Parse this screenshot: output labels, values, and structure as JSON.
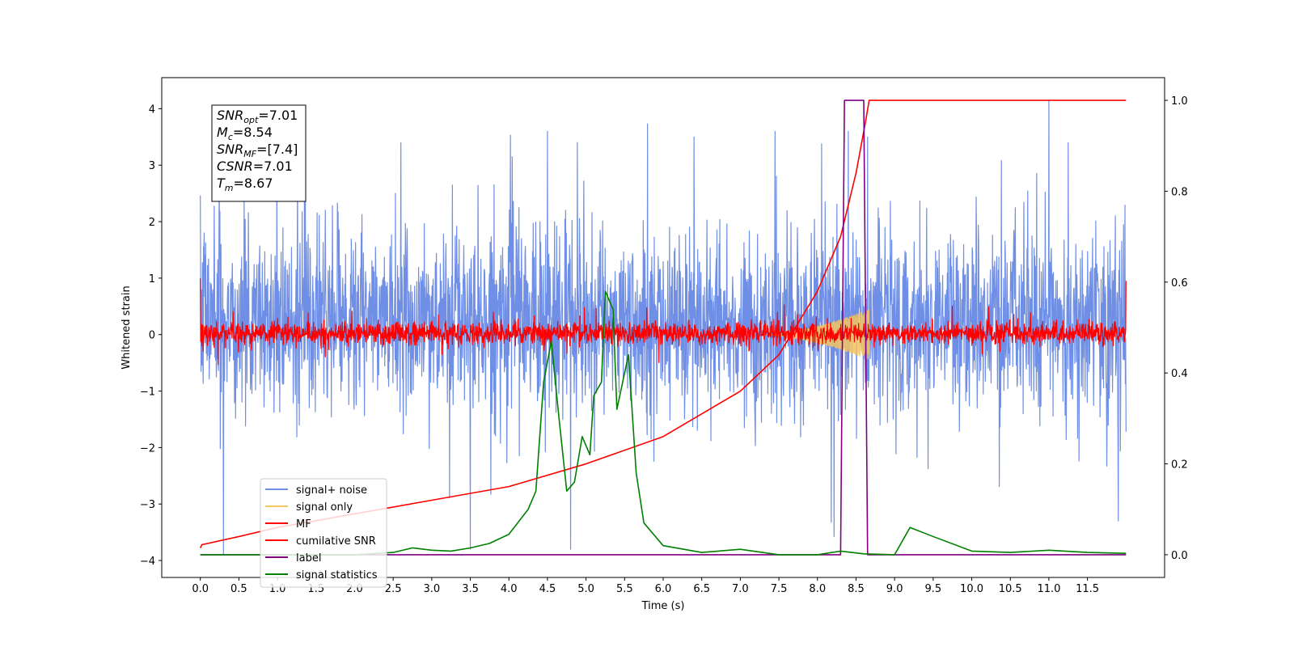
{
  "chart_data": {
    "type": "line",
    "title": "",
    "xlabel": "Time (s)",
    "ylabel": "Whitened strain",
    "y2label": "",
    "xlim": [
      -0.5,
      12.5
    ],
    "ylim": [
      -4.3,
      4.55
    ],
    "y2lim": [
      -0.05,
      1.05
    ],
    "xticks": [
      0.0,
      0.5,
      1.0,
      1.5,
      2.0,
      2.5,
      3.0,
      3.5,
      4.0,
      4.5,
      5.0,
      5.5,
      6.0,
      6.5,
      7.0,
      7.5,
      8.0,
      8.5,
      9.0,
      9.5,
      10.0,
      10.5,
      11.0,
      11.5
    ],
    "xtick_labels": [
      "0.0",
      "0.5",
      "1.0",
      "1.5",
      "2.0",
      "2.5",
      "3.0",
      "3.5",
      "4.0",
      "4.5",
      "5.0",
      "5.5",
      "6.0",
      "6.5",
      "7.0",
      "7.5",
      "8.0",
      "8.5",
      "9.0",
      "9.5",
      "10.0",
      "10.5",
      "11.0",
      "11.5"
    ],
    "yticks": [
      -4,
      -3,
      -2,
      -1,
      0,
      1,
      2,
      3,
      4
    ],
    "ytick_labels": [
      "−4",
      "−3",
      "−2",
      "−1",
      "0",
      "1",
      "2",
      "3",
      "4"
    ],
    "y2ticks": [
      0.0,
      0.2,
      0.4,
      0.6,
      0.8,
      1.0
    ],
    "y2tick_labels": [
      "0.0",
      "0.2",
      "0.4",
      "0.6",
      "0.8",
      "1.0"
    ],
    "legend_position": "lower-left",
    "grid": false,
    "annotation": {
      "lines": [
        {
          "main": "SNR",
          "sub": "opt",
          "rest": "=7.01"
        },
        {
          "main": "M",
          "sub": "c",
          "rest": "=8.54"
        },
        {
          "main": "SNR",
          "sub": "MF",
          "rest": "=[7.4]"
        },
        {
          "main": "CSNR",
          "sub": "",
          "rest": "=7.01"
        },
        {
          "main": "T",
          "sub": "m",
          "rest": "=8.67"
        }
      ]
    },
    "series": [
      {
        "name": "signal+ noise",
        "axis": "left",
        "color": "#6f8fe6",
        "kind": "noise_band",
        "x_range": [
          0.0,
          12.0
        ],
        "typical_range": [
          -1.2,
          1.7
        ],
        "extremes": [
          [
            0.05,
            1.8
          ],
          [
            0.3,
            -3.9
          ],
          [
            1.35,
            3.45
          ],
          [
            2.6,
            3.4
          ],
          [
            3.5,
            -3.8
          ],
          [
            4.5,
            3.6
          ],
          [
            4.8,
            -3.8
          ],
          [
            6.4,
            3.5
          ],
          [
            7.45,
            3.6
          ],
          [
            8.4,
            3.6
          ],
          [
            8.65,
            3.5
          ],
          [
            11.0,
            4.15
          ],
          [
            11.25,
            3.4
          ],
          [
            11.9,
            -3.3
          ]
        ]
      },
      {
        "name": "signal only",
        "axis": "left",
        "color": "#f5c45f",
        "kind": "chirp",
        "x_range": [
          7.3,
          8.67
        ],
        "peak_amplitude": 0.45
      },
      {
        "name": "MF",
        "axis": "left",
        "color": "#ff0000",
        "kind": "noise_band",
        "x_range": [
          0.0,
          12.0
        ],
        "typical_range": [
          -0.15,
          0.2
        ],
        "extremes": [
          [
            0.0,
            1.0
          ],
          [
            0.02,
            -0.2
          ],
          [
            12.0,
            0.95
          ]
        ]
      },
      {
        "name": "cumilative SNR",
        "axis": "right",
        "color": "#ff0000",
        "kind": "line",
        "points": [
          [
            0.0,
            0.015
          ],
          [
            0.02,
            0.022
          ],
          [
            0.5,
            0.04
          ],
          [
            1.0,
            0.06
          ],
          [
            2.0,
            0.09
          ],
          [
            3.0,
            0.12
          ],
          [
            4.0,
            0.15
          ],
          [
            5.0,
            0.2
          ],
          [
            6.0,
            0.26
          ],
          [
            7.0,
            0.36
          ],
          [
            7.5,
            0.44
          ],
          [
            8.0,
            0.58
          ],
          [
            8.3,
            0.7
          ],
          [
            8.5,
            0.84
          ],
          [
            8.62,
            0.95
          ],
          [
            8.67,
            1.0
          ],
          [
            12.0,
            1.0
          ]
        ]
      },
      {
        "name": "label",
        "axis": "right",
        "color": "#800080",
        "kind": "line",
        "points": [
          [
            0.0,
            0.0
          ],
          [
            8.3,
            0.0
          ],
          [
            8.35,
            1.0
          ],
          [
            8.6,
            1.0
          ],
          [
            8.65,
            0.0
          ],
          [
            12.0,
            0.0
          ]
        ]
      },
      {
        "name": "signal statistics",
        "axis": "right",
        "color": "#008000",
        "kind": "line",
        "points": [
          [
            0.0,
            0.0
          ],
          [
            2.0,
            0.0
          ],
          [
            2.5,
            0.005
          ],
          [
            2.75,
            0.015
          ],
          [
            3.0,
            0.01
          ],
          [
            3.25,
            0.008
          ],
          [
            3.5,
            0.015
          ],
          [
            3.75,
            0.025
          ],
          [
            4.0,
            0.045
          ],
          [
            4.25,
            0.1
          ],
          [
            4.35,
            0.14
          ],
          [
            4.45,
            0.38
          ],
          [
            4.55,
            0.47
          ],
          [
            4.65,
            0.3
          ],
          [
            4.75,
            0.14
          ],
          [
            4.85,
            0.16
          ],
          [
            4.95,
            0.26
          ],
          [
            5.05,
            0.22
          ],
          [
            5.1,
            0.35
          ],
          [
            5.2,
            0.38
          ],
          [
            5.25,
            0.58
          ],
          [
            5.35,
            0.54
          ],
          [
            5.4,
            0.32
          ],
          [
            5.55,
            0.44
          ],
          [
            5.65,
            0.18
          ],
          [
            5.75,
            0.07
          ],
          [
            6.0,
            0.02
          ],
          [
            6.5,
            0.005
          ],
          [
            7.0,
            0.012
          ],
          [
            7.5,
            0.0
          ],
          [
            8.0,
            0.0
          ],
          [
            8.3,
            0.008
          ],
          [
            8.6,
            0.002
          ],
          [
            9.0,
            0.0
          ],
          [
            9.2,
            0.06
          ],
          [
            9.5,
            0.04
          ],
          [
            10.0,
            0.008
          ],
          [
            10.5,
            0.005
          ],
          [
            11.0,
            0.01
          ],
          [
            11.5,
            0.005
          ],
          [
            12.0,
            0.003
          ]
        ]
      }
    ]
  }
}
